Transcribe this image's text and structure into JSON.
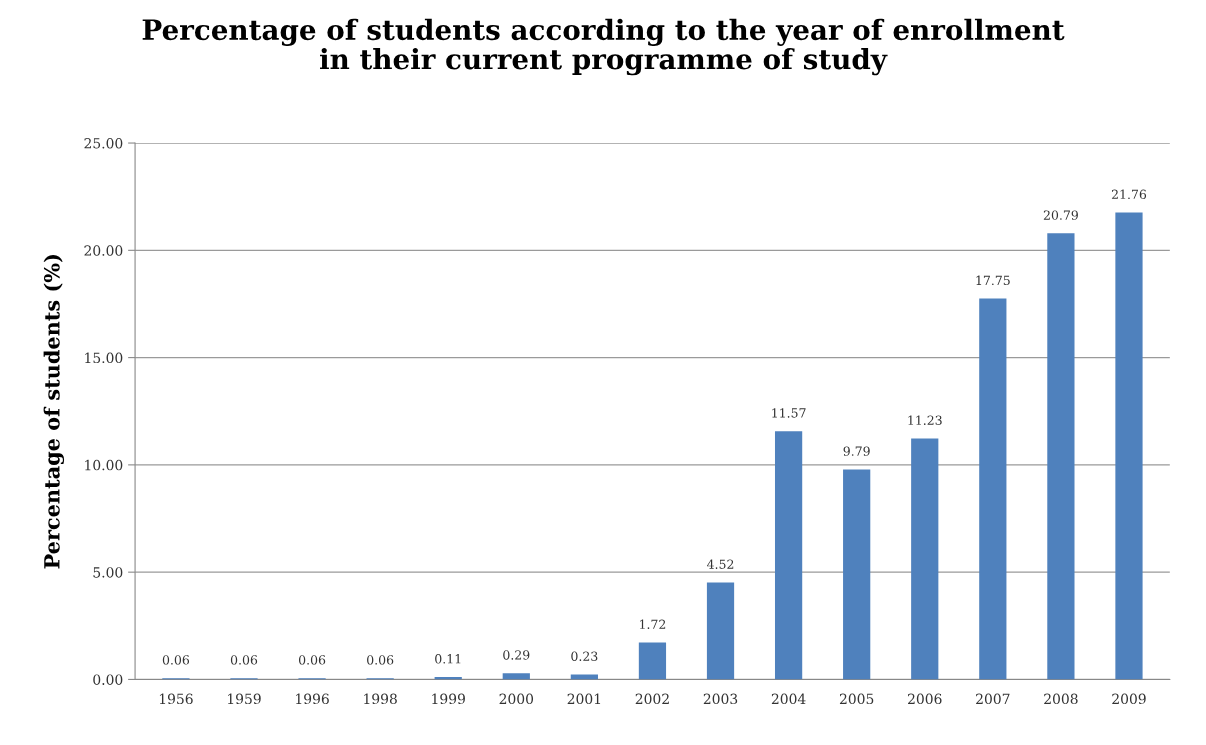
{
  "chart_data": {
    "type": "bar",
    "title": "Percentage of students according to the year of enrollment\nin their current programme of study",
    "ylabel": "Percentage of students (%)",
    "categories": [
      "1956",
      "1959",
      "1996",
      "1998",
      "1999",
      "2000",
      "2001",
      "2002",
      "2003",
      "2004",
      "2005",
      "2006",
      "2007",
      "2008",
      "2009"
    ],
    "values": [
      0.06,
      0.06,
      0.06,
      0.06,
      0.11,
      0.29,
      0.23,
      1.72,
      4.52,
      11.57,
      9.79,
      11.23,
      17.75,
      20.79,
      21.76
    ],
    "color": "#4f81bd",
    "ylim": [
      0,
      25
    ],
    "yticks": [
      {
        "value": 0,
        "label": "0.00"
      },
      {
        "value": 5,
        "label": "5.00"
      },
      {
        "value": 10,
        "label": "10.00"
      },
      {
        "value": 15,
        "label": "15.00"
      },
      {
        "value": 20,
        "label": "20.00"
      },
      {
        "value": 25,
        "label": "25.00"
      }
    ],
    "grid": "y",
    "data_labels": true
  }
}
